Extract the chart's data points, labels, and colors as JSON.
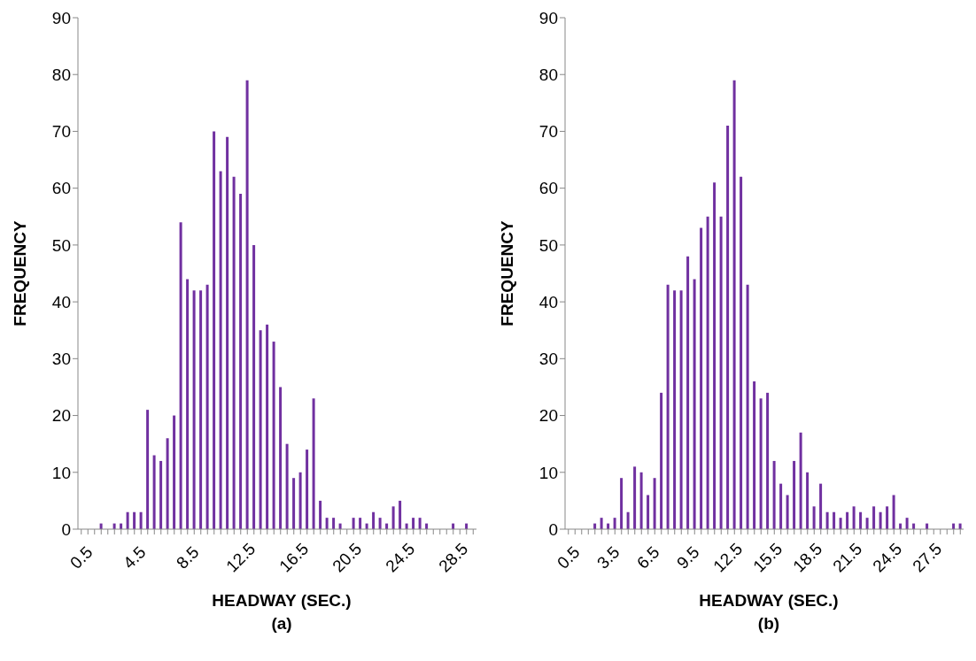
{
  "chart_data": [
    {
      "type": "bar",
      "xlabel": "HEADWAY (SEC.)",
      "ylabel": "FREQUENCY",
      "annotations": [
        "(a)"
      ],
      "color": "#7030a0",
      "categories": [
        "0.5",
        null,
        null,
        null,
        null,
        null,
        null,
        null,
        "4.5",
        null,
        null,
        null,
        null,
        null,
        null,
        null,
        "8.5",
        null,
        null,
        null,
        null,
        null,
        null,
        null,
        "12.5",
        null,
        null,
        null,
        null,
        null,
        null,
        null,
        "16.5",
        null,
        null,
        null,
        null,
        null,
        null,
        null,
        "20.5",
        null,
        null,
        null,
        null,
        null,
        null,
        null,
        "24.5",
        null,
        null,
        null,
        null,
        null,
        null,
        null,
        "28.5",
        null,
        null,
        null
      ],
      "values": [
        null,
        null,
        null,
        1,
        null,
        1,
        1,
        3,
        3,
        3,
        21,
        13,
        12,
        16,
        20,
        54,
        44,
        42,
        42,
        43,
        70,
        63,
        69,
        62,
        59,
        79,
        50,
        35,
        36,
        33,
        25,
        15,
        9,
        10,
        14,
        23,
        5,
        2,
        2,
        1,
        null,
        2,
        2,
        1,
        3,
        2,
        1,
        4,
        5,
        1,
        2,
        2,
        1,
        null,
        null,
        null,
        1,
        null,
        1,
        null
      ],
      "ylim": [
        0,
        90
      ],
      "yticks": [
        0,
        10,
        20,
        30,
        40,
        50,
        60,
        70,
        80,
        90
      ],
      "grid": false,
      "legend": false
    },
    {
      "type": "bar",
      "xlabel": "HEADWAY (SEC.)",
      "ylabel": "FREQUENCY",
      "annotations": [
        "(b)"
      ],
      "color": "#7030a0",
      "categories": [
        "0.5",
        null,
        null,
        null,
        null,
        null,
        "3.5",
        null,
        null,
        null,
        null,
        null,
        "6.5",
        null,
        null,
        null,
        null,
        null,
        "9.5",
        null,
        null,
        null,
        null,
        null,
        "12.5",
        null,
        null,
        null,
        null,
        null,
        "15.5",
        null,
        null,
        null,
        null,
        null,
        "18.5",
        null,
        null,
        null,
        null,
        null,
        "21.5",
        null,
        null,
        null,
        null,
        null,
        "24.5",
        null,
        null,
        null,
        null,
        null,
        "27.5",
        null,
        null,
        null,
        null,
        null
      ],
      "values": [
        null,
        null,
        null,
        null,
        1,
        2,
        1,
        2,
        9,
        3,
        11,
        10,
        6,
        9,
        24,
        43,
        42,
        42,
        48,
        44,
        53,
        55,
        61,
        55,
        71,
        79,
        62,
        43,
        26,
        23,
        24,
        12,
        8,
        6,
        12,
        17,
        10,
        4,
        8,
        3,
        3,
        2,
        3,
        4,
        3,
        2,
        4,
        3,
        4,
        6,
        1,
        2,
        1,
        null,
        1,
        null,
        null,
        null,
        1,
        1
      ],
      "ylim": [
        0,
        90
      ],
      "yticks": [
        0,
        10,
        20,
        30,
        40,
        50,
        60,
        70,
        80,
        90
      ],
      "grid": false,
      "legend": false
    }
  ]
}
